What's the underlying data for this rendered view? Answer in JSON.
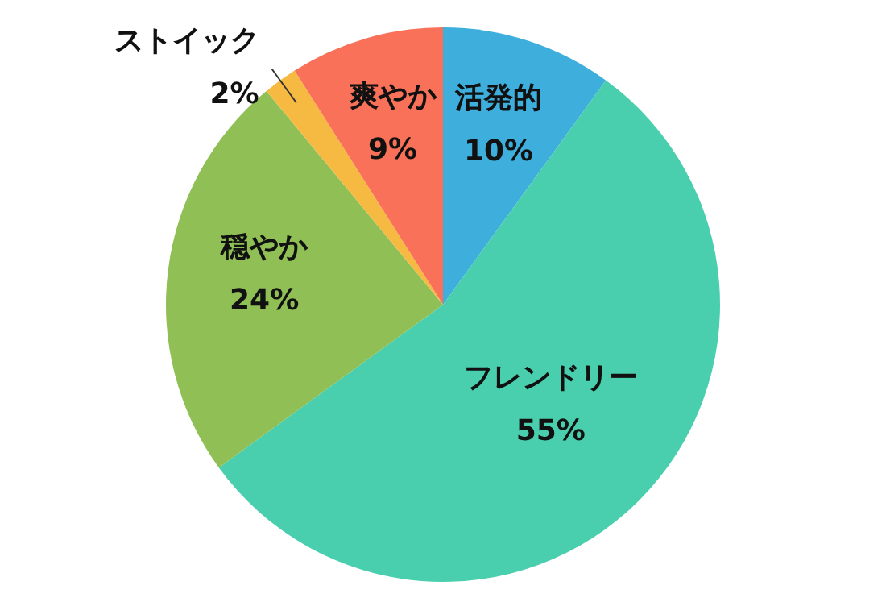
{
  "chart_data": {
    "type": "pie",
    "categories": [
      "活発的",
      "フレンドリー",
      "穏やか",
      "ストイック",
      "爽やか"
    ],
    "values": [
      10,
      55,
      24,
      2,
      9
    ],
    "value_labels": [
      "10%",
      "55%",
      "24%",
      "2%",
      "9%"
    ],
    "colors": [
      "#3eaedc",
      "#4acfae",
      "#8fbf55",
      "#f6b942",
      "#f87158"
    ]
  }
}
